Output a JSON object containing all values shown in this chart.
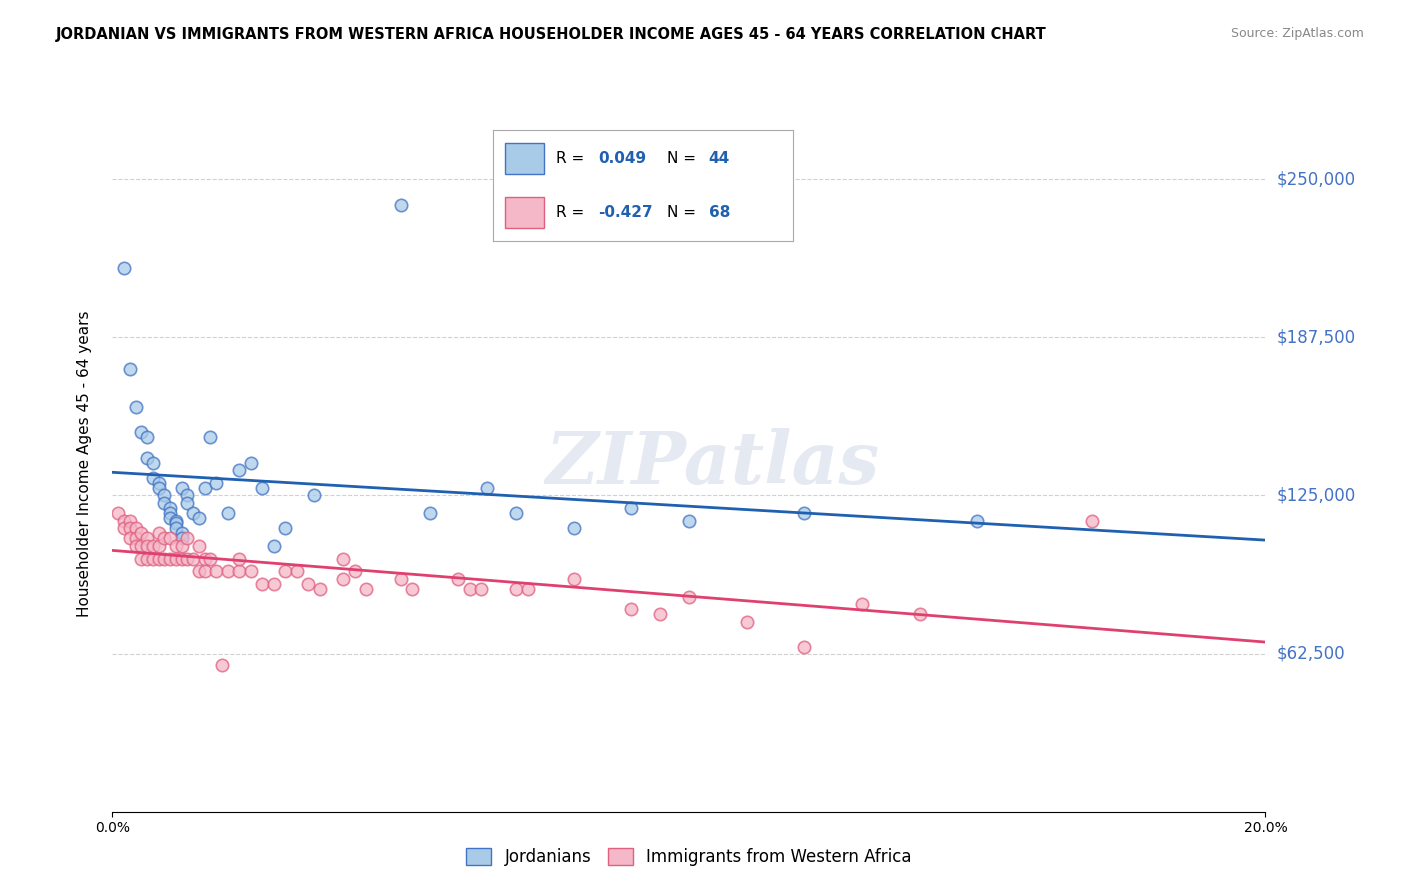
{
  "title": "JORDANIAN VS IMMIGRANTS FROM WESTERN AFRICA HOUSEHOLDER INCOME AGES 45 - 64 YEARS CORRELATION CHART",
  "source": "Source: ZipAtlas.com",
  "ylabel": "Householder Income Ages 45 - 64 years",
  "xmin": 0.0,
  "xmax": 0.2,
  "ymin": 0,
  "ymax": 275000,
  "yticks": [
    62500,
    125000,
    187500,
    250000
  ],
  "ytick_labels": [
    "$62,500",
    "$125,000",
    "$187,500",
    "$250,000"
  ],
  "xtick_labels": [
    "0.0%",
    "20.0%"
  ],
  "blue_R": 0.049,
  "blue_N": 44,
  "pink_R": -0.427,
  "pink_N": 68,
  "legend_label_blue": "Jordanians",
  "legend_label_pink": "Immigrants from Western Africa",
  "blue_color": "#a8cce8",
  "pink_color": "#f4b8c8",
  "blue_edge_color": "#4472c4",
  "pink_edge_color": "#e06080",
  "blue_line_color": "#2060b0",
  "pink_line_color": "#e04070",
  "blue_scatter": [
    [
      0.002,
      215000
    ],
    [
      0.003,
      175000
    ],
    [
      0.004,
      160000
    ],
    [
      0.005,
      150000
    ],
    [
      0.006,
      148000
    ],
    [
      0.006,
      140000
    ],
    [
      0.007,
      138000
    ],
    [
      0.007,
      132000
    ],
    [
      0.008,
      130000
    ],
    [
      0.008,
      128000
    ],
    [
      0.009,
      125000
    ],
    [
      0.009,
      122000
    ],
    [
      0.01,
      120000
    ],
    [
      0.01,
      118000
    ],
    [
      0.01,
      116000
    ],
    [
      0.011,
      115000
    ],
    [
      0.011,
      114000
    ],
    [
      0.011,
      112000
    ],
    [
      0.012,
      110000
    ],
    [
      0.012,
      108000
    ],
    [
      0.012,
      128000
    ],
    [
      0.013,
      125000
    ],
    [
      0.013,
      122000
    ],
    [
      0.014,
      118000
    ],
    [
      0.015,
      116000
    ],
    [
      0.016,
      128000
    ],
    [
      0.017,
      148000
    ],
    [
      0.018,
      130000
    ],
    [
      0.02,
      118000
    ],
    [
      0.022,
      135000
    ],
    [
      0.024,
      138000
    ],
    [
      0.026,
      128000
    ],
    [
      0.028,
      105000
    ],
    [
      0.03,
      112000
    ],
    [
      0.035,
      125000
    ],
    [
      0.05,
      240000
    ],
    [
      0.055,
      118000
    ],
    [
      0.065,
      128000
    ],
    [
      0.07,
      118000
    ],
    [
      0.08,
      112000
    ],
    [
      0.09,
      120000
    ],
    [
      0.1,
      115000
    ],
    [
      0.12,
      118000
    ],
    [
      0.15,
      115000
    ]
  ],
  "pink_scatter": [
    [
      0.001,
      118000
    ],
    [
      0.002,
      115000
    ],
    [
      0.002,
      112000
    ],
    [
      0.003,
      115000
    ],
    [
      0.003,
      112000
    ],
    [
      0.003,
      108000
    ],
    [
      0.004,
      112000
    ],
    [
      0.004,
      108000
    ],
    [
      0.004,
      105000
    ],
    [
      0.005,
      110000
    ],
    [
      0.005,
      105000
    ],
    [
      0.005,
      100000
    ],
    [
      0.006,
      108000
    ],
    [
      0.006,
      105000
    ],
    [
      0.006,
      100000
    ],
    [
      0.007,
      105000
    ],
    [
      0.007,
      100000
    ],
    [
      0.008,
      110000
    ],
    [
      0.008,
      105000
    ],
    [
      0.008,
      100000
    ],
    [
      0.009,
      108000
    ],
    [
      0.009,
      100000
    ],
    [
      0.01,
      108000
    ],
    [
      0.01,
      100000
    ],
    [
      0.011,
      105000
    ],
    [
      0.011,
      100000
    ],
    [
      0.012,
      105000
    ],
    [
      0.012,
      100000
    ],
    [
      0.013,
      108000
    ],
    [
      0.013,
      100000
    ],
    [
      0.014,
      100000
    ],
    [
      0.015,
      105000
    ],
    [
      0.015,
      95000
    ],
    [
      0.016,
      100000
    ],
    [
      0.016,
      95000
    ],
    [
      0.017,
      100000
    ],
    [
      0.018,
      95000
    ],
    [
      0.019,
      58000
    ],
    [
      0.02,
      95000
    ],
    [
      0.022,
      95000
    ],
    [
      0.022,
      100000
    ],
    [
      0.024,
      95000
    ],
    [
      0.026,
      90000
    ],
    [
      0.028,
      90000
    ],
    [
      0.03,
      95000
    ],
    [
      0.032,
      95000
    ],
    [
      0.034,
      90000
    ],
    [
      0.036,
      88000
    ],
    [
      0.04,
      100000
    ],
    [
      0.04,
      92000
    ],
    [
      0.042,
      95000
    ],
    [
      0.044,
      88000
    ],
    [
      0.05,
      92000
    ],
    [
      0.052,
      88000
    ],
    [
      0.06,
      92000
    ],
    [
      0.062,
      88000
    ],
    [
      0.064,
      88000
    ],
    [
      0.07,
      88000
    ],
    [
      0.072,
      88000
    ],
    [
      0.08,
      92000
    ],
    [
      0.09,
      80000
    ],
    [
      0.095,
      78000
    ],
    [
      0.1,
      85000
    ],
    [
      0.11,
      75000
    ],
    [
      0.12,
      65000
    ],
    [
      0.13,
      82000
    ],
    [
      0.14,
      78000
    ],
    [
      0.17,
      115000
    ]
  ],
  "watermark_text": "ZIPatlas",
  "background_color": "#ffffff",
  "grid_color": "#cccccc"
}
